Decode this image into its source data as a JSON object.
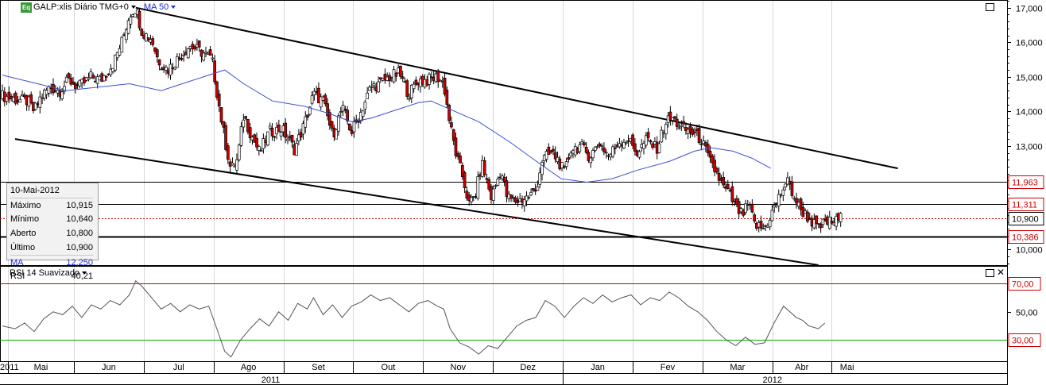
{
  "header": {
    "symbol_label": "GALP:xlis Diário TMG+0",
    "symbol_icon": "Eq",
    "ma_label": "MA 50"
  },
  "rsi_panel": {
    "title": "RSI 14 Suavizado"
  },
  "info_box": {
    "date": "10-Mai-2012",
    "rows": [
      {
        "label": "Máximo",
        "value": "10,915"
      },
      {
        "label": "Mínimo",
        "value": "10,640"
      },
      {
        "label": "Aberto",
        "value": "10,800"
      },
      {
        "label": "Último",
        "value": "10,900"
      },
      {
        "label": "MA",
        "value": "12,250"
      },
      {
        "label": "RSI",
        "value": "40,21"
      }
    ]
  },
  "colors": {
    "up_candle": "#ffffff",
    "down_candle": "#cc0000",
    "ma_line": "#3b4fd4",
    "rsi_upper": "#cc0000",
    "rsi_lower": "#00aa00",
    "price_tag": "#cc0000"
  },
  "chart_data": [
    {
      "type": "candlestick",
      "title": "GALP:xlis Diário TMG+0",
      "y_axis": {
        "min": 9.55,
        "max": 17.2,
        "ticks": [
          "17,000",
          "16,000",
          "15,000",
          "14,000",
          "13,000",
          "12,000",
          "11,000",
          "10,000"
        ],
        "tick_values": [
          17,
          16,
          15,
          14,
          13,
          12,
          11,
          10
        ]
      },
      "x_axis": {
        "month_labels": [
          "2011",
          "Mai",
          "Jun",
          "Jul",
          "Ago",
          "Set",
          "Out",
          "Nov",
          "Dez",
          "Jan",
          "Fev",
          "Mar",
          "Abr",
          "Mai"
        ],
        "month_days": [
          0,
          3.5,
          45,
          89,
          133,
          177,
          221,
          265,
          309,
          353,
          397,
          441,
          485,
          522
        ],
        "year_labels": [
          "2011",
          "2012"
        ],
        "year_days": [
          169,
          485
        ]
      },
      "last_day": 528,
      "price_anchors": [
        [
          0,
          14.45
        ],
        [
          8,
          14.35
        ],
        [
          16,
          14.3
        ],
        [
          20,
          14.0
        ],
        [
          24,
          14.4
        ],
        [
          30,
          14.7
        ],
        [
          36,
          14.6
        ],
        [
          42,
          14.9
        ],
        [
          48,
          14.7
        ],
        [
          56,
          15.0
        ],
        [
          62,
          14.9
        ],
        [
          70,
          15.4
        ],
        [
          76,
          16.1
        ],
        [
          80,
          16.8
        ],
        [
          84,
          17.0
        ],
        [
          88,
          16.3
        ],
        [
          94,
          16.1
        ],
        [
          98,
          15.5
        ],
        [
          104,
          15.2
        ],
        [
          112,
          15.6
        ],
        [
          118,
          15.9
        ],
        [
          126,
          15.7
        ],
        [
          132,
          15.5
        ],
        [
          136,
          14.3
        ],
        [
          140,
          13.2
        ],
        [
          144,
          12.3
        ],
        [
          148,
          12.6
        ],
        [
          152,
          13.9
        ],
        [
          156,
          13.4
        ],
        [
          162,
          12.8
        ],
        [
          168,
          13.4
        ],
        [
          176,
          13.5
        ],
        [
          184,
          12.9
        ],
        [
          190,
          13.6
        ],
        [
          196,
          14.5
        ],
        [
          202,
          14.3
        ],
        [
          208,
          13.3
        ],
        [
          214,
          14.1
        ],
        [
          220,
          13.4
        ],
        [
          226,
          14.0
        ],
        [
          232,
          14.7
        ],
        [
          238,
          14.8
        ],
        [
          244,
          15.0
        ],
        [
          250,
          15.1
        ],
        [
          256,
          14.5
        ],
        [
          262,
          14.9
        ],
        [
          268,
          14.9
        ],
        [
          274,
          15.0
        ],
        [
          278,
          14.8
        ],
        [
          282,
          13.6
        ],
        [
          286,
          12.7
        ],
        [
          290,
          12.1
        ],
        [
          294,
          11.3
        ],
        [
          298,
          11.6
        ],
        [
          302,
          12.5
        ],
        [
          308,
          11.5
        ],
        [
          314,
          12.3
        ],
        [
          318,
          11.5
        ],
        [
          324,
          11.4
        ],
        [
          330,
          11.5
        ],
        [
          336,
          11.7
        ],
        [
          340,
          12.6
        ],
        [
          346,
          12.8
        ],
        [
          350,
          12.6
        ],
        [
          354,
          12.2
        ],
        [
          358,
          12.9
        ],
        [
          364,
          13.0
        ],
        [
          370,
          12.7
        ],
        [
          376,
          13.1
        ],
        [
          382,
          12.7
        ],
        [
          388,
          13.1
        ],
        [
          394,
          13.2
        ],
        [
          400,
          12.8
        ],
        [
          406,
          13.2
        ],
        [
          412,
          12.9
        ],
        [
          418,
          13.7
        ],
        [
          422,
          13.8
        ],
        [
          428,
          13.5
        ],
        [
          434,
          13.4
        ],
        [
          440,
          13.2
        ],
        [
          446,
          12.5
        ],
        [
          450,
          12.2
        ],
        [
          454,
          11.8
        ],
        [
          458,
          11.6
        ],
        [
          462,
          11.2
        ],
        [
          466,
          11.0
        ],
        [
          470,
          11.3
        ],
        [
          474,
          10.7
        ],
        [
          480,
          10.6
        ],
        [
          486,
          11.2
        ],
        [
          490,
          11.6
        ],
        [
          494,
          12.0
        ],
        [
          498,
          11.6
        ],
        [
          502,
          11.2
        ],
        [
          508,
          10.9
        ],
        [
          514,
          10.6
        ],
        [
          518,
          10.8
        ],
        [
          524,
          10.8
        ],
        [
          528,
          10.9
        ]
      ],
      "ma50_anchors": [
        [
          0,
          15.05
        ],
        [
          40,
          14.6
        ],
        [
          80,
          14.8
        ],
        [
          100,
          14.6
        ],
        [
          110,
          14.75
        ],
        [
          140,
          15.2
        ],
        [
          152,
          14.8
        ],
        [
          170,
          14.3
        ],
        [
          190,
          14.15
        ],
        [
          205,
          13.95
        ],
        [
          220,
          13.7
        ],
        [
          232,
          13.8
        ],
        [
          252,
          14.1
        ],
        [
          262,
          14.25
        ],
        [
          270,
          14.3
        ],
        [
          280,
          14.1
        ],
        [
          300,
          13.7
        ],
        [
          320,
          13.1
        ],
        [
          338,
          12.5
        ],
        [
          352,
          12.05
        ],
        [
          368,
          11.95
        ],
        [
          384,
          12.05
        ],
        [
          400,
          12.3
        ],
        [
          420,
          12.55
        ],
        [
          436,
          12.85
        ],
        [
          446,
          12.95
        ],
        [
          460,
          12.85
        ],
        [
          472,
          12.65
        ],
        [
          484,
          12.35
        ]
      ],
      "horizontal_levels": [
        {
          "value": 11.963,
          "label": "11,963",
          "style": "thin"
        },
        {
          "value": 11.311,
          "label": "11,311",
          "style": "thin"
        },
        {
          "value": 10.9,
          "label": "10,900",
          "style": "current"
        },
        {
          "value": 10.386,
          "label": "10,386",
          "style": "thick"
        }
      ],
      "trend_lines": [
        {
          "from": [
            84,
            17.0
          ],
          "to": [
            564,
            12.35
          ]
        },
        {
          "from": [
            8,
            13.2
          ],
          "to": [
            514,
            9.55
          ]
        }
      ],
      "high": 17.0,
      "low": 10.386
    },
    {
      "type": "line",
      "title": "RSI 14 Suavizado",
      "y_axis": {
        "min": 15,
        "max": 82,
        "ticks": [
          "70,00",
          "50,00",
          "30,00"
        ],
        "tick_values": [
          70,
          50,
          30
        ]
      },
      "levels": [
        {
          "value": 70,
          "label": "70,00"
        },
        {
          "value": 30,
          "label": "30,00"
        }
      ],
      "rsi_anchors": [
        [
          0,
          40
        ],
        [
          8,
          38
        ],
        [
          14,
          42
        ],
        [
          20,
          36
        ],
        [
          26,
          45
        ],
        [
          32,
          50
        ],
        [
          38,
          48
        ],
        [
          44,
          54
        ],
        [
          50,
          46
        ],
        [
          56,
          55
        ],
        [
          62,
          52
        ],
        [
          68,
          58
        ],
        [
          74,
          55
        ],
        [
          80,
          62
        ],
        [
          84,
          72
        ],
        [
          88,
          68
        ],
        [
          94,
          60
        ],
        [
          100,
          52
        ],
        [
          106,
          56
        ],
        [
          112,
          50
        ],
        [
          118,
          55
        ],
        [
          124,
          52
        ],
        [
          130,
          54
        ],
        [
          136,
          35
        ],
        [
          140,
          22
        ],
        [
          144,
          18
        ],
        [
          150,
          30
        ],
        [
          156,
          38
        ],
        [
          162,
          45
        ],
        [
          168,
          40
        ],
        [
          174,
          50
        ],
        [
          180,
          44
        ],
        [
          186,
          56
        ],
        [
          192,
          52
        ],
        [
          196,
          60
        ],
        [
          202,
          48
        ],
        [
          208,
          55
        ],
        [
          214,
          46
        ],
        [
          220,
          54
        ],
        [
          226,
          57
        ],
        [
          232,
          62
        ],
        [
          238,
          58
        ],
        [
          244,
          60
        ],
        [
          250,
          55
        ],
        [
          256,
          50
        ],
        [
          262,
          56
        ],
        [
          268,
          58
        ],
        [
          274,
          54
        ],
        [
          278,
          52
        ],
        [
          282,
          38
        ],
        [
          288,
          28
        ],
        [
          294,
          25
        ],
        [
          300,
          20
        ],
        [
          306,
          26
        ],
        [
          312,
          24
        ],
        [
          318,
          32
        ],
        [
          324,
          40
        ],
        [
          330,
          44
        ],
        [
          336,
          46
        ],
        [
          342,
          58
        ],
        [
          348,
          54
        ],
        [
          354,
          46
        ],
        [
          360,
          54
        ],
        [
          366,
          60
        ],
        [
          372,
          56
        ],
        [
          378,
          62
        ],
        [
          384,
          57
        ],
        [
          390,
          60
        ],
        [
          396,
          62
        ],
        [
          402,
          55
        ],
        [
          408,
          60
        ],
        [
          414,
          58
        ],
        [
          420,
          64
        ],
        [
          426,
          60
        ],
        [
          432,
          54
        ],
        [
          438,
          50
        ],
        [
          444,
          44
        ],
        [
          450,
          36
        ],
        [
          456,
          30
        ],
        [
          462,
          26
        ],
        [
          468,
          32
        ],
        [
          474,
          27
        ],
        [
          480,
          28
        ],
        [
          486,
          42
        ],
        [
          492,
          54
        ],
        [
          496,
          50
        ],
        [
          500,
          46
        ],
        [
          504,
          44
        ],
        [
          508,
          40
        ],
        [
          514,
          38
        ],
        [
          518,
          42
        ]
      ]
    }
  ]
}
